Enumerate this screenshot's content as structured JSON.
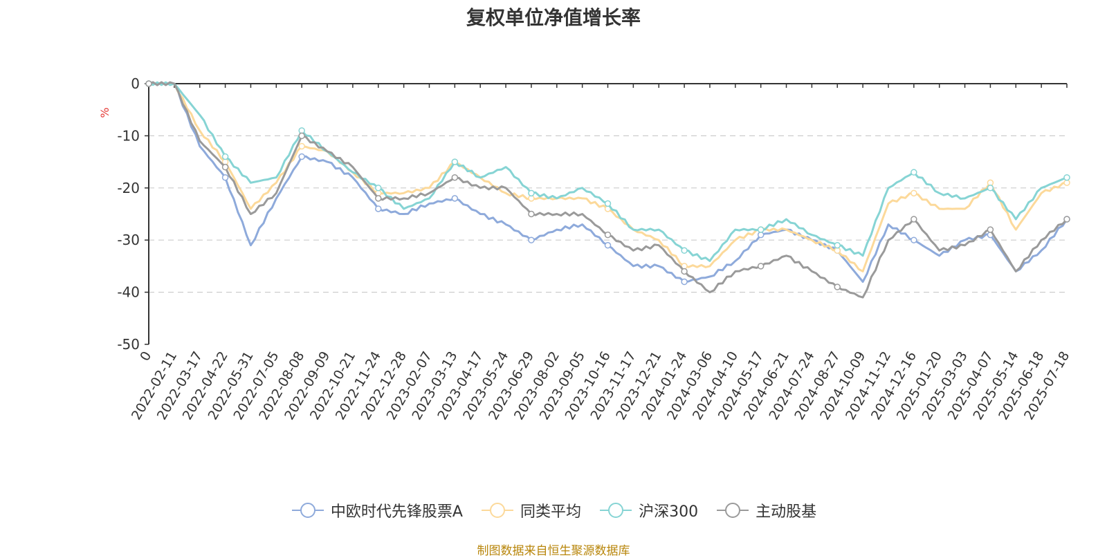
{
  "chart_data": {
    "type": "line",
    "title": "复权单位净值增长率",
    "ylabel": "%",
    "ylim": [
      -50,
      0
    ],
    "yticks": [
      0,
      -10,
      -20,
      -30,
      -40,
      -50
    ],
    "x_start_label": "0",
    "grid": true,
    "legend_position": "bottom",
    "x": [
      "2022-02-11",
      "2022-03-17",
      "2022-04-22",
      "2022-05-31",
      "2022-07-05",
      "2022-08-08",
      "2022-09-09",
      "2022-10-21",
      "2022-11-24",
      "2022-12-28",
      "2023-02-07",
      "2023-03-13",
      "2023-04-17",
      "2023-05-24",
      "2023-06-29",
      "2023-08-02",
      "2023-09-05",
      "2023-10-16",
      "2023-11-17",
      "2023-12-21",
      "2024-01-24",
      "2024-03-06",
      "2024-04-10",
      "2024-05-17",
      "2024-06-21",
      "2024-07-24",
      "2024-08-27",
      "2024-10-09",
      "2024-11-12",
      "2024-12-16",
      "2025-01-20",
      "2025-03-03",
      "2025-04-07",
      "2025-05-14",
      "2025-06-18",
      "2025-07-18"
    ],
    "series": [
      {
        "name": "中欧时代先锋股票A",
        "color": "#8eaadb",
        "values": [
          0,
          -12,
          -18,
          -31,
          -22,
          -14,
          -15,
          -18,
          -24,
          -25,
          -23,
          -22,
          -25,
          -27,
          -30,
          -28,
          -27,
          -31,
          -35,
          -35,
          -38,
          -37,
          -34,
          -29,
          -28,
          -30,
          -32,
          -38,
          -27,
          -30,
          -33,
          -30,
          -29,
          -36,
          -32,
          -26
        ]
      },
      {
        "name": "同类平均",
        "color": "#fcd99a",
        "values": [
          0,
          -9,
          -15,
          -24,
          -19,
          -12,
          -13,
          -17,
          -21,
          -21,
          -20,
          -15,
          -18,
          -21,
          -22,
          -22,
          -22,
          -24,
          -28,
          -30,
          -35,
          -35,
          -30,
          -28,
          -28,
          -30,
          -32,
          -36,
          -23,
          -21,
          -24,
          -24,
          -19,
          -28,
          -21,
          -19
        ]
      },
      {
        "name": "沪深300",
        "color": "#86d4d4",
        "values": [
          0,
          -6,
          -14,
          -19,
          -18,
          -9,
          -13,
          -17,
          -20,
          -24,
          -22,
          -15,
          -18,
          -16,
          -21,
          -22,
          -20,
          -23,
          -28,
          -28,
          -32,
          -34,
          -28,
          -28,
          -26,
          -29,
          -31,
          -33,
          -20,
          -17,
          -21,
          -22,
          -20,
          -26,
          -20,
          -18
        ]
      },
      {
        "name": "主动股基",
        "color": "#9a9a9a",
        "values": [
          0,
          -11,
          -16,
          -25,
          -21,
          -10,
          -13,
          -16,
          -22,
          -22,
          -21,
          -18,
          -20,
          -20,
          -25,
          -25,
          -25,
          -29,
          -32,
          -31,
          -36,
          -40,
          -36,
          -35,
          -33,
          -36,
          -39,
          -41,
          -30,
          -26,
          -32,
          -31,
          -28,
          -36,
          -30,
          -26
        ]
      }
    ]
  },
  "footer": {
    "source": "制图数据来自恒生聚源数据库"
  }
}
